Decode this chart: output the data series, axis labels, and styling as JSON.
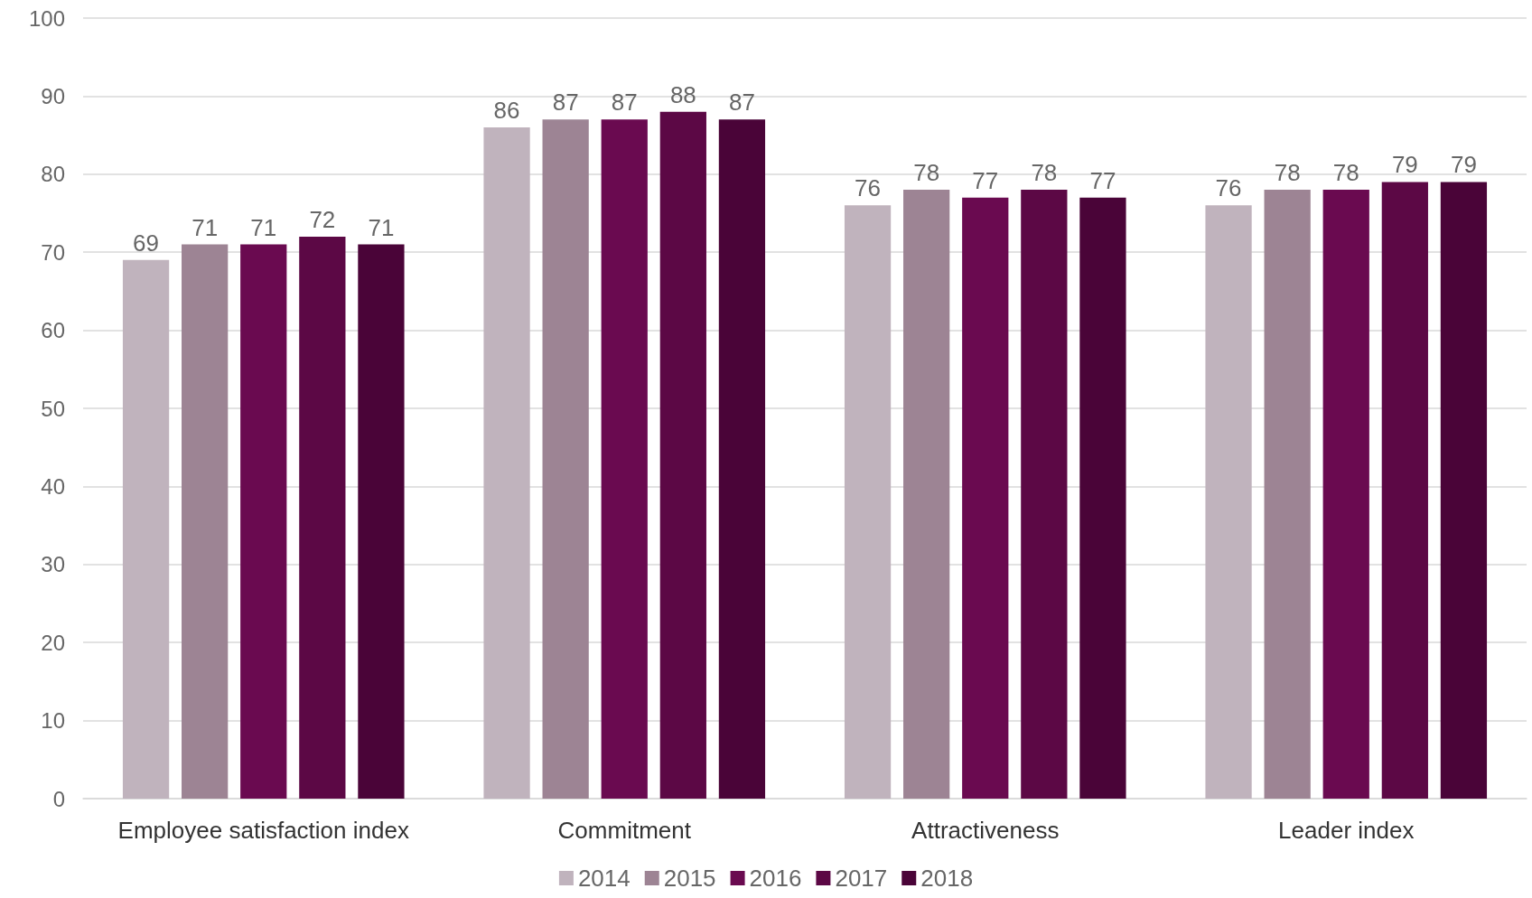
{
  "chart_data": {
    "type": "bar",
    "categories": [
      "Employee satisfaction index",
      "Commitment",
      "Attractiveness",
      "Leader index"
    ],
    "series": [
      {
        "name": "2014",
        "color": "#c0b3bd",
        "values": [
          69,
          86,
          76,
          76
        ]
      },
      {
        "name": "2015",
        "color": "#9d8494",
        "values": [
          71,
          87,
          78,
          78
        ]
      },
      {
        "name": "2016",
        "color": "#6a0a50",
        "values": [
          71,
          87,
          77,
          78
        ]
      },
      {
        "name": "2017",
        "color": "#5c0845",
        "values": [
          72,
          88,
          78,
          79
        ]
      },
      {
        "name": "2018",
        "color": "#4a0438",
        "values": [
          71,
          87,
          77,
          79
        ]
      }
    ],
    "ylim": [
      0,
      100
    ],
    "yticks": [
      0,
      10,
      20,
      30,
      40,
      50,
      60,
      70,
      80,
      90,
      100
    ],
    "grid": "y",
    "legend": "bottom",
    "data_labels": true
  }
}
